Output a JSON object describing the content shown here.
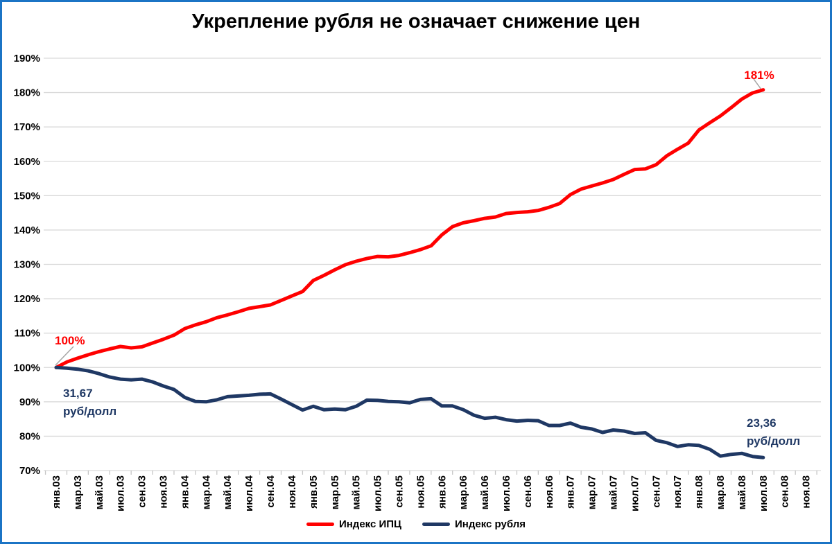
{
  "chart_data": {
    "type": "line",
    "title": "Укрепление рубля не означает снижение цен",
    "y_axis": {
      "min": 70,
      "max": 190,
      "step": 10,
      "tick_labels": [
        "70%",
        "80%",
        "90%",
        "100%",
        "110%",
        "120%",
        "130%",
        "140%",
        "150%",
        "160%",
        "170%",
        "180%",
        "190%"
      ],
      "unit": "%"
    },
    "x_axis": {
      "tick_labels": [
        "янв.03",
        "мар.03",
        "май.03",
        "июл.03",
        "сен.03",
        "ноя.03",
        "янв.04",
        "мар.04",
        "май.04",
        "июл.04",
        "сен.04",
        "ноя.04",
        "янв.05",
        "мар.05",
        "май.05",
        "июл.05",
        "сен.05",
        "ноя.05",
        "янв.06",
        "мар.06",
        "май.06",
        "июл.06",
        "сен.06",
        "ноя.06",
        "янв.07",
        "мар.07",
        "май.07",
        "июл.07",
        "сен.07",
        "ноя.07",
        "янв.08",
        "мар.08",
        "май.08",
        "июл.08",
        "сен.08",
        "ноя.08"
      ],
      "months_per_tick": 2,
      "total_month_slots": 71,
      "data_months": 67
    },
    "grid": "horizontal",
    "legend_position": "bottom",
    "series": [
      {
        "name": "Индекс ИПЦ",
        "color": "#ff0000",
        "values": [
          100.0,
          101.6,
          102.7,
          103.7,
          104.6,
          105.4,
          106.1,
          105.7,
          106.0,
          107.1,
          108.2,
          109.4,
          111.3,
          112.4,
          113.3,
          114.5,
          115.3,
          116.2,
          117.2,
          117.7,
          118.2,
          119.5,
          120.8,
          122.1,
          125.3,
          126.8,
          128.4,
          129.9,
          130.9,
          131.7,
          132.3,
          132.2,
          132.6,
          133.4,
          134.3,
          135.4,
          138.6,
          141.0,
          142.1,
          142.7,
          143.4,
          143.8,
          144.8,
          145.1,
          145.3,
          145.7,
          146.6,
          147.7,
          150.3,
          151.9,
          152.8,
          153.7,
          154.7,
          156.2,
          157.6,
          157.8,
          159.0,
          161.6,
          163.5,
          165.3,
          169.1,
          171.2,
          173.2,
          175.6,
          178.1,
          179.9,
          180.8
        ]
      },
      {
        "name": "Индекс рубля",
        "color": "#1f3864",
        "values": [
          100.0,
          99.8,
          99.5,
          99.0,
          98.2,
          97.2,
          96.6,
          96.4,
          96.6,
          95.8,
          94.6,
          93.6,
          91.3,
          90.1,
          90.0,
          90.6,
          91.5,
          91.7,
          91.9,
          92.2,
          92.3,
          90.8,
          89.2,
          87.6,
          88.7,
          87.7,
          87.9,
          87.7,
          88.7,
          90.5,
          90.4,
          90.1,
          90.0,
          89.7,
          90.7,
          90.9,
          88.8,
          88.8,
          87.7,
          86.1,
          85.2,
          85.5,
          84.8,
          84.4,
          84.6,
          84.5,
          83.1,
          83.1,
          83.8,
          82.6,
          82.1,
          81.1,
          81.8,
          81.5,
          80.8,
          81.0,
          78.8,
          78.1,
          77.0,
          77.5,
          77.3,
          76.2,
          74.2,
          74.7,
          75.0,
          74.1,
          73.8
        ]
      }
    ],
    "annotations": {
      "cpi_start": {
        "text": "100%",
        "color": "#ff0000"
      },
      "cpi_end": {
        "text": "181%",
        "color": "#ff0000"
      },
      "ruble_start": {
        "line1": "31,67",
        "line2": "руб/долл",
        "color": "#1f3864"
      },
      "ruble_end": {
        "line1": "23,36",
        "line2": "руб/долл",
        "color": "#1f3864"
      }
    },
    "colors": {
      "gridline": "#d9d9d9",
      "tick": "#c6c6c6",
      "leader_line": "#a6a6a6",
      "frame_border": "#1b74c5"
    }
  }
}
